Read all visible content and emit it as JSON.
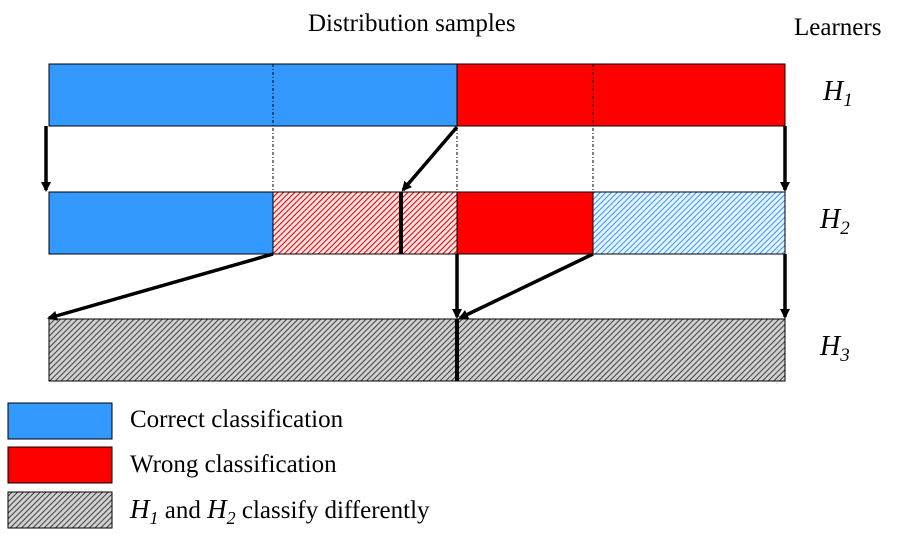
{
  "title": "Distribution samples",
  "learners_header": "Learners",
  "learners": [
    {
      "letter": "H",
      "sub": "1"
    },
    {
      "letter": "H",
      "sub": "2"
    },
    {
      "letter": "H",
      "sub": "3"
    }
  ],
  "legend": {
    "correct": "Correct classification",
    "wrong": "Wrong classification",
    "differ_h1": "H",
    "differ_h1_sub": "1",
    "differ_and": " and ",
    "differ_h2": "H",
    "differ_h2_sub": "2",
    "differ_tail": " classify differently"
  },
  "colors": {
    "correct": "#3399ff",
    "wrong": "#ff0000",
    "hatch_dark": "#505050",
    "light_red": "#ffd5d5",
    "light_blue": "#cfe6ff"
  }
}
